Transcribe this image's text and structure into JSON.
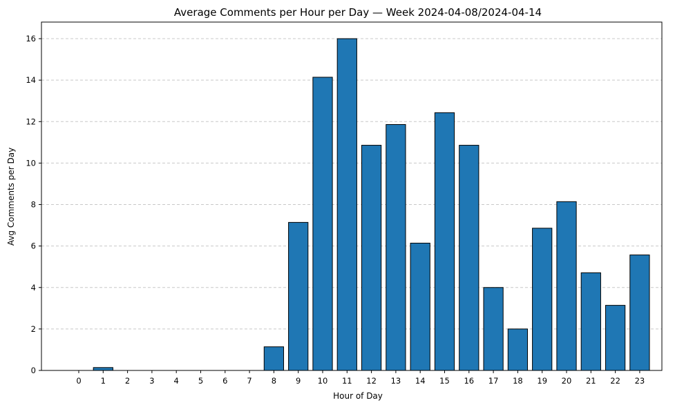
{
  "chart_data": {
    "type": "bar",
    "title": "Average Comments per Hour per Day — Week 2024-04-08/2024-04-14",
    "xlabel": "Hour of Day",
    "ylabel": "Avg Comments per Day",
    "categories": [
      "0",
      "1",
      "2",
      "3",
      "4",
      "5",
      "6",
      "7",
      "8",
      "9",
      "10",
      "11",
      "12",
      "13",
      "14",
      "15",
      "16",
      "17",
      "18",
      "19",
      "20",
      "21",
      "22",
      "23"
    ],
    "values": [
      0,
      0.14,
      0,
      0,
      0,
      0,
      0,
      0,
      1.14,
      7.14,
      14.14,
      16.0,
      10.86,
      11.86,
      6.14,
      12.43,
      10.86,
      4.0,
      2.0,
      6.86,
      8.14,
      4.71,
      3.14,
      5.57
    ],
    "ylim": [
      0,
      16.8
    ],
    "yticks": [
      0,
      2,
      4,
      6,
      8,
      10,
      12,
      14,
      16
    ],
    "grid": "y-dashed",
    "bar_color": "#1f77b4",
    "edge_color": "#000000",
    "grid_color": "#c8c8c8"
  }
}
